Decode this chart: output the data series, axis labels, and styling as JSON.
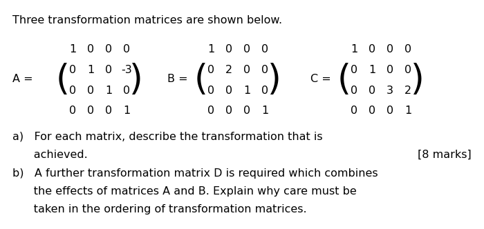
{
  "title": "Three transformation matrices are shown below.",
  "bg_color": "#ffffff",
  "text_color": "#000000",
  "matrix_A": [
    [
      1,
      0,
      0,
      0
    ],
    [
      0,
      1,
      0,
      -3
    ],
    [
      0,
      0,
      1,
      0
    ],
    [
      0,
      0,
      0,
      1
    ]
  ],
  "matrix_B": [
    [
      1,
      0,
      0,
      0
    ],
    [
      0,
      2,
      0,
      0
    ],
    [
      0,
      0,
      1,
      0
    ],
    [
      0,
      0,
      0,
      1
    ]
  ],
  "matrix_C": [
    [
      1,
      0,
      0,
      0
    ],
    [
      0,
      1,
      0,
      0
    ],
    [
      0,
      0,
      3,
      2
    ],
    [
      0,
      0,
      0,
      1
    ]
  ],
  "label_A": "A =",
  "label_B": "B =",
  "label_C": "C =",
  "part_a": "a) For each matrix, describe the transformation that is\n   achieved.",
  "part_a_marks": "[8 marks]",
  "part_b": "b) A further transformation matrix D is required which combines\n   the effects of matrices A and B. Explain why care must be\n   taken in the ordering of transformation matrices.",
  "font_size_title": 11.5,
  "font_size_matrix": 11.5,
  "font_size_text": 11.5
}
